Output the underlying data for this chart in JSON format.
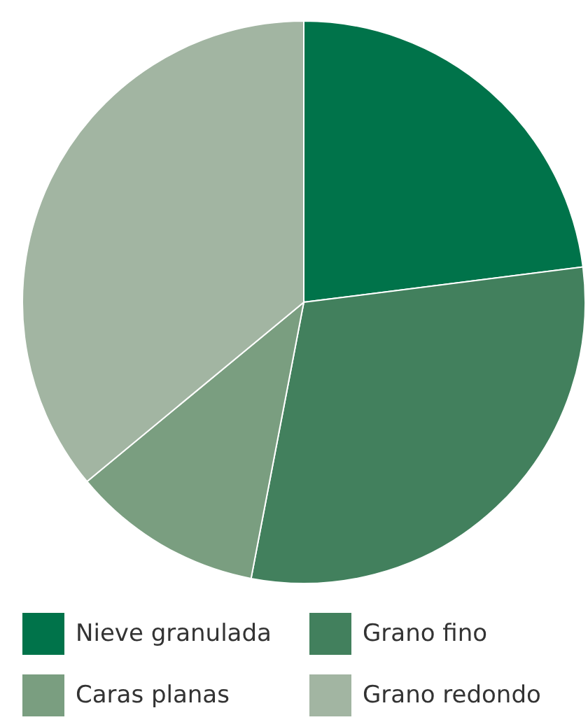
{
  "chart_data": {
    "type": "pie",
    "categories": [
      "Nieve granulada",
      "Grano fino",
      "Caras planas",
      "Grano redondo"
    ],
    "values": [
      23,
      30,
      11,
      36
    ],
    "colors": [
      "#00734a",
      "#42805d",
      "#7a9e80",
      "#a2b5a2"
    ],
    "legend": "bottom"
  }
}
